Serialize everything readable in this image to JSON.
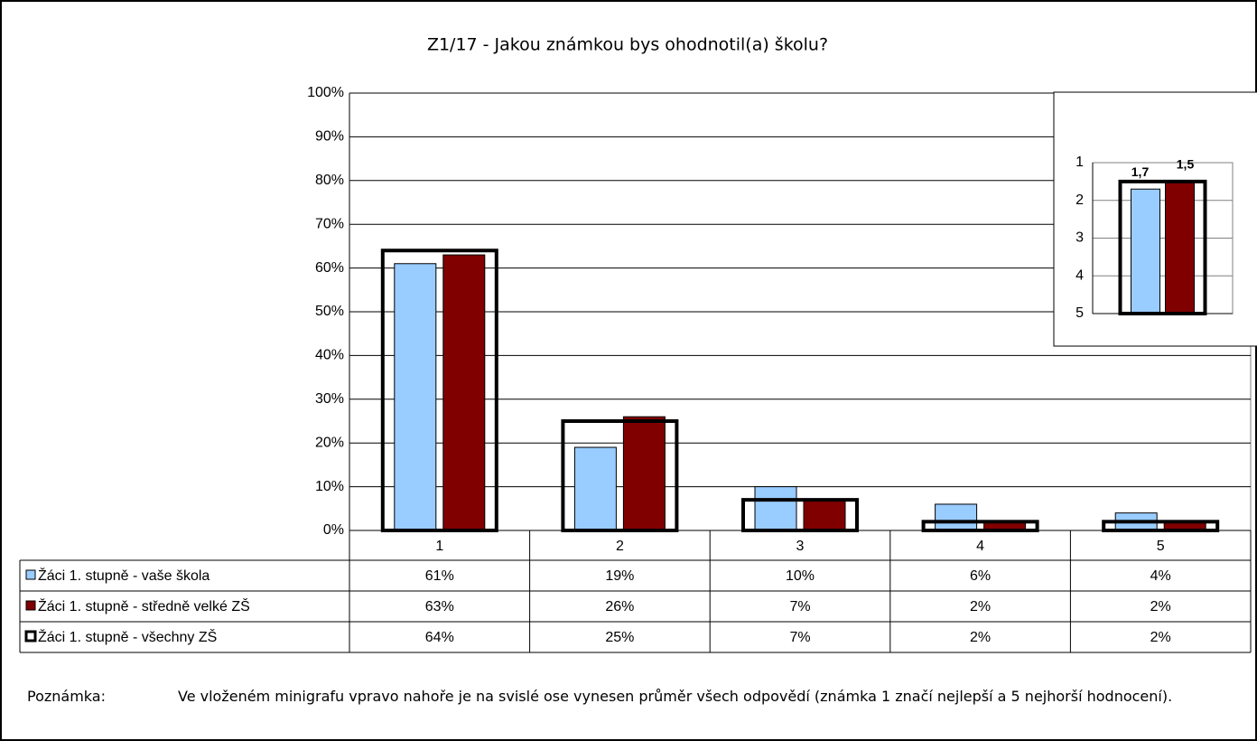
{
  "chart_data": [
    {
      "type": "bar",
      "title": "Z1/17 - Jakou známkou bys ohodnotil(a) školu?",
      "categories": [
        "1",
        "2",
        "3",
        "4",
        "5"
      ],
      "series": [
        {
          "name": "Žáci 1. stupně - vaše škola",
          "color": "#99ccff",
          "values": [
            61,
            19,
            10,
            6,
            4
          ],
          "value_labels": [
            "61%",
            "19%",
            "10%",
            "6%",
            "4%"
          ]
        },
        {
          "name": "Žáci 1. stupně - středně velké ZŠ",
          "color": "#800000",
          "values": [
            63,
            26,
            7,
            2,
            2
          ],
          "value_labels": [
            "63%",
            "26%",
            "7%",
            "2%",
            "2%"
          ]
        },
        {
          "name": "Žáci 1. stupně - všechny ZŠ",
          "color": "#000000",
          "fill": "none",
          "values": [
            64,
            25,
            7,
            2,
            2
          ],
          "value_labels": [
            "64%",
            "25%",
            "7%",
            "2%",
            "2%"
          ]
        }
      ],
      "ylim": [
        0,
        100
      ],
      "yticks": [
        {
          "value": 0,
          "label": "0%"
        },
        {
          "value": 10,
          "label": "10%"
        },
        {
          "value": 20,
          "label": "20%"
        },
        {
          "value": 30,
          "label": "30%"
        },
        {
          "value": 40,
          "label": "40%"
        },
        {
          "value": 50,
          "label": "50%"
        },
        {
          "value": 60,
          "label": "60%"
        },
        {
          "value": 70,
          "label": "70%"
        },
        {
          "value": 80,
          "label": "80%"
        },
        {
          "value": 90,
          "label": "90%"
        },
        {
          "value": 100,
          "label": "100%"
        }
      ],
      "grid": true
    },
    {
      "type": "bar",
      "series": [
        {
          "color": "#99ccff",
          "values": [
            1.7
          ],
          "value_labels": [
            "1,7"
          ]
        },
        {
          "color": "#800000",
          "values": [
            1.5
          ],
          "value_labels": [
            "1,5"
          ]
        },
        {
          "color": "#000000",
          "fill": "none",
          "values": [
            1.5
          ]
        }
      ],
      "ylim": [
        1,
        5
      ],
      "reversed": true,
      "yticks": [
        1,
        2,
        3,
        4,
        5
      ],
      "grid": true
    }
  ],
  "note": {
    "label": "Poznámka:",
    "text": "Ve vloženém minigrafu vpravo nahoře je na svislé ose vynesen průměr všech odpovědí (známka 1 značí nejlepší a 5 nejhorší hodnocení)."
  }
}
